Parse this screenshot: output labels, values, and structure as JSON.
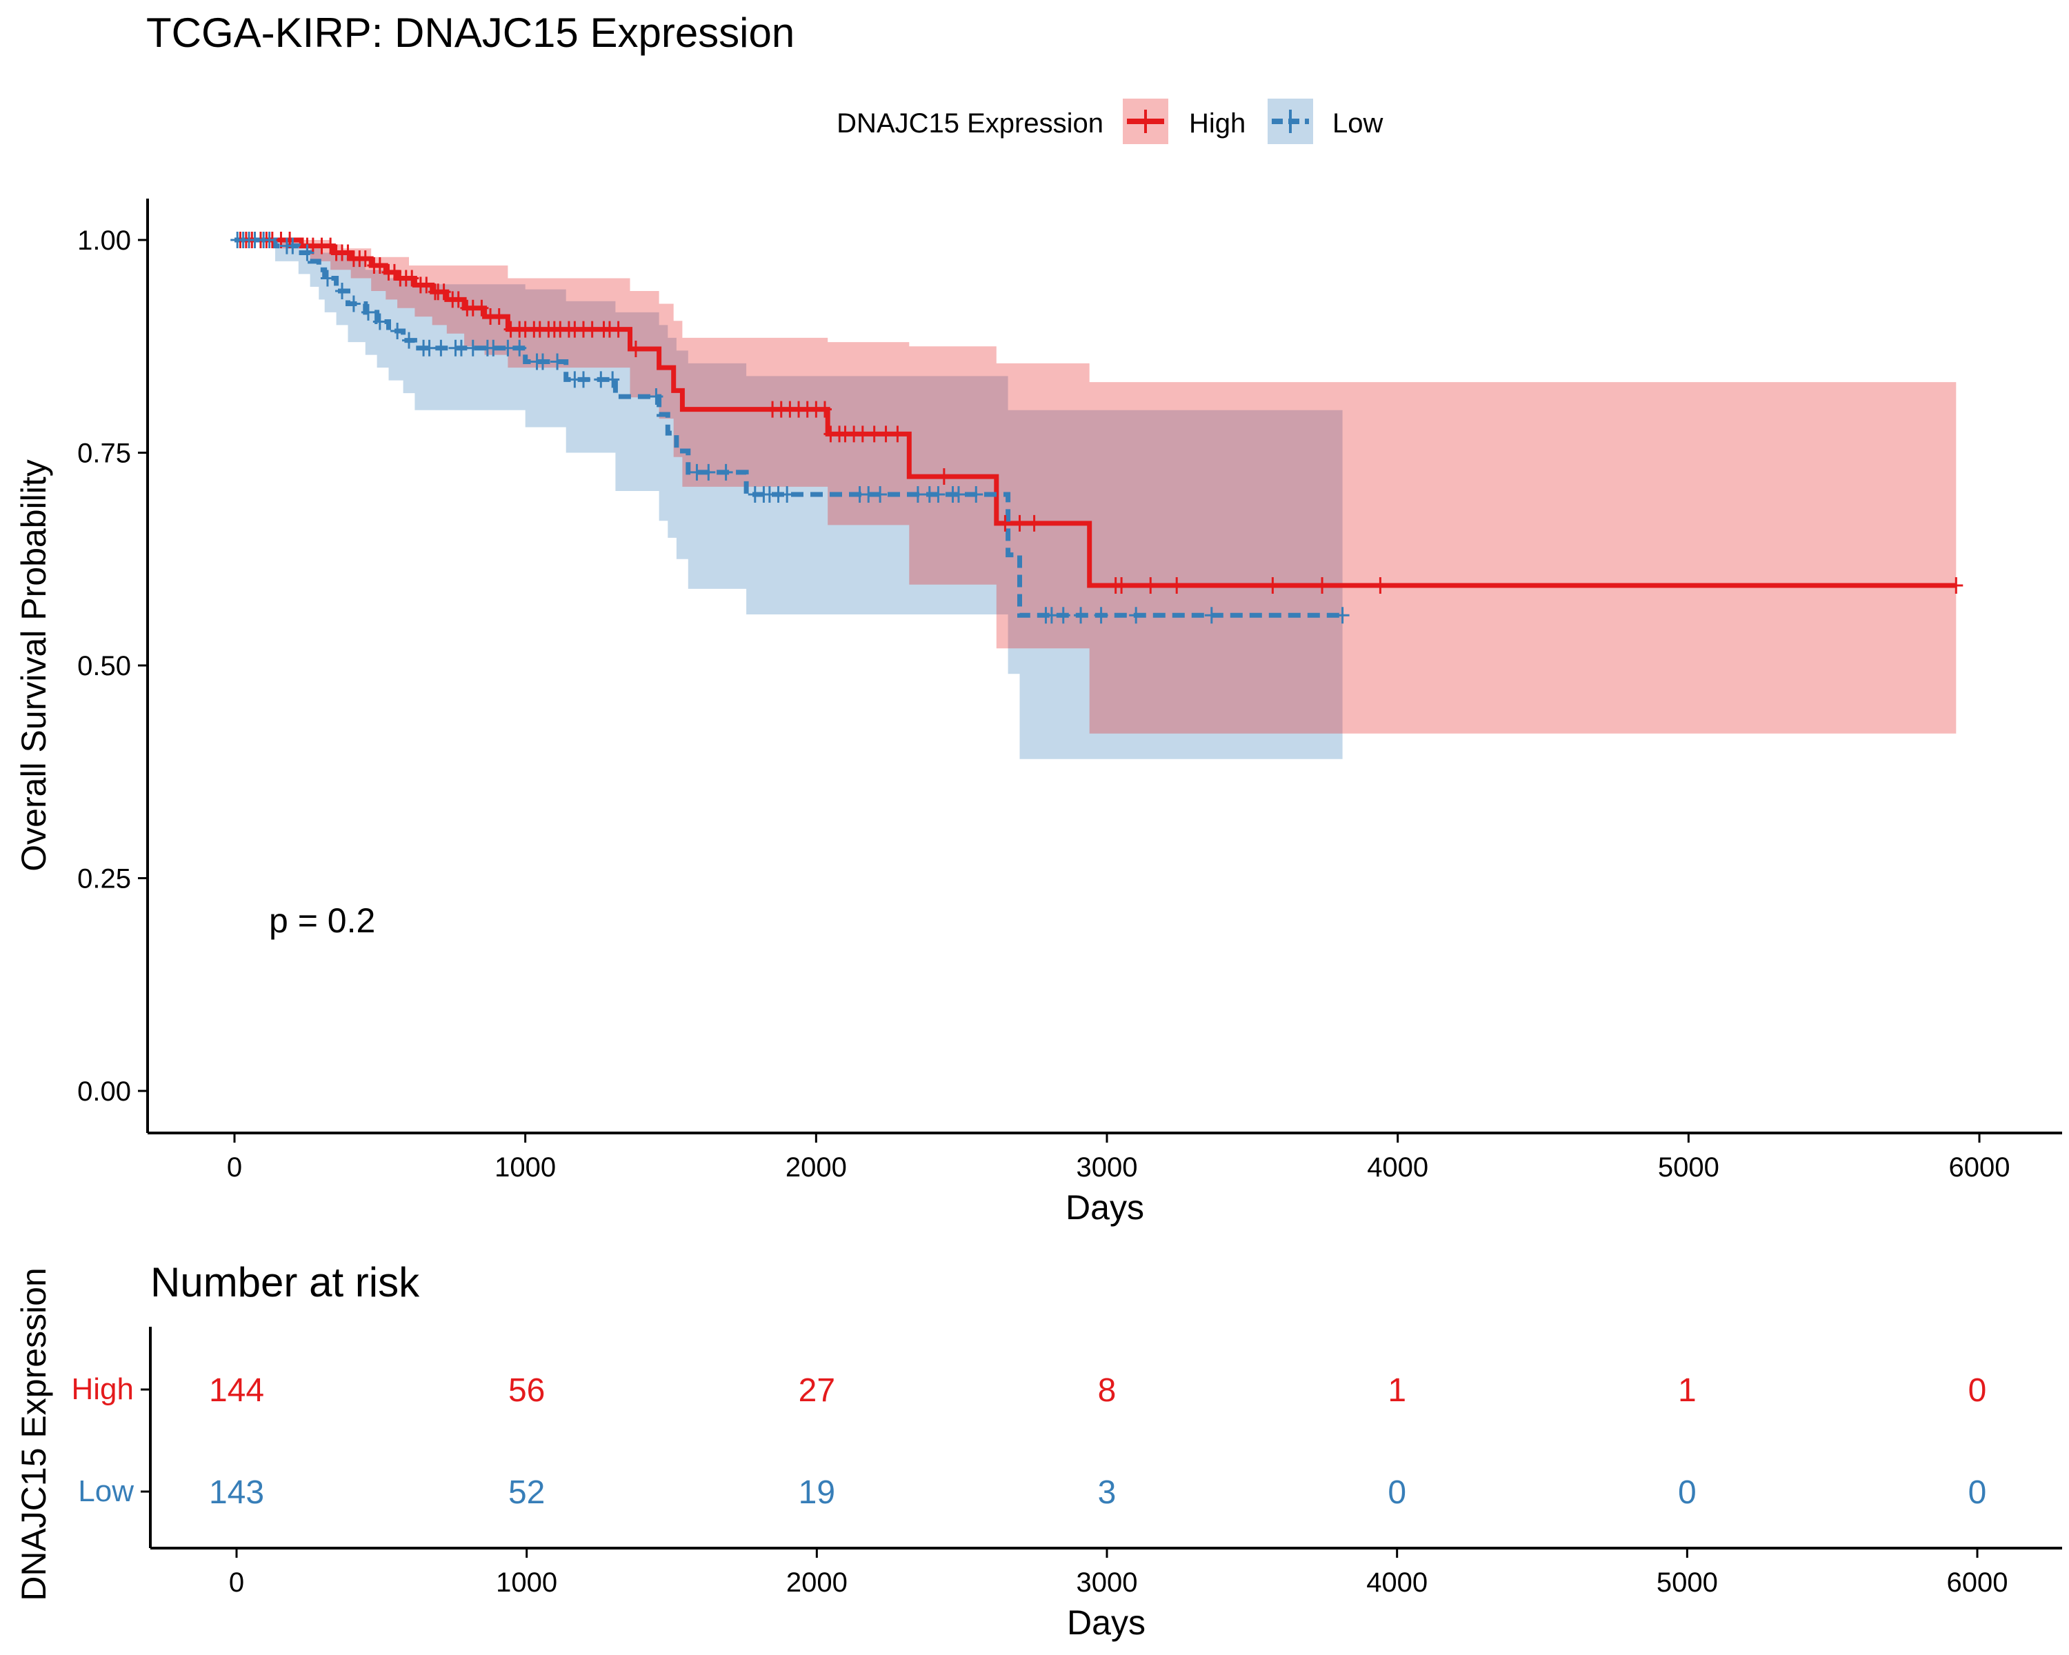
{
  "title": "TCGA-KIRP: DNAJC15 Expression",
  "legend": {
    "title": "DNAJC15 Expression",
    "placement": "top",
    "items": [
      {
        "label": "High",
        "color": "#E41A1C"
      },
      {
        "label": "Low",
        "color": "#377EB8"
      }
    ]
  },
  "pvalue_text": "p = 0.2",
  "risk_table": {
    "title": "Number at risk",
    "ylabel": "DNAJC15 Expression",
    "xlabel": "Days",
    "times": [
      0,
      1000,
      2000,
      3000,
      4000,
      5000,
      6000
    ],
    "tick_labels": [
      "0",
      "1000",
      "2000",
      "3000",
      "4000",
      "5000",
      "6000"
    ],
    "rows": [
      {
        "name": "High",
        "color": "#E41A1C",
        "values": [
          "144",
          "56",
          "27",
          "8",
          "1",
          "1",
          "0"
        ]
      },
      {
        "name": "Low",
        "color": "#377EB8",
        "values": [
          "143",
          "52",
          "19",
          "3",
          "0",
          "0",
          "0"
        ]
      }
    ]
  },
  "chart_data": {
    "type": "line",
    "subtype": "kaplan-meier",
    "title": "TCGA-KIRP: DNAJC15 Expression",
    "xlabel": "Days",
    "ylabel": "Overall Survival Probability",
    "xlim": [
      -300,
      6300
    ],
    "ylim": [
      -0.04,
      1.05
    ],
    "xticks": [
      0,
      1000,
      2000,
      3000,
      4000,
      5000,
      6000
    ],
    "xtick_labels": [
      "0",
      "1000",
      "2000",
      "3000",
      "4000",
      "5000",
      "6000"
    ],
    "yticks": [
      0,
      0.25,
      0.5,
      0.75,
      1.0
    ],
    "ytick_labels": [
      "0.00",
      "0.25",
      "0.50",
      "0.75",
      "1.00"
    ],
    "grid": false,
    "series": [
      {
        "name": "High",
        "color": "#E41A1C",
        "dash": "solid",
        "step": [
          [
            0,
            1.0
          ],
          [
            230,
            0.993
          ],
          [
            340,
            0.985
          ],
          [
            400,
            0.978
          ],
          [
            470,
            0.97
          ],
          [
            520,
            0.962
          ],
          [
            560,
            0.955
          ],
          [
            620,
            0.947
          ],
          [
            680,
            0.939
          ],
          [
            730,
            0.93
          ],
          [
            790,
            0.92
          ],
          [
            860,
            0.91
          ],
          [
            940,
            0.895
          ],
          [
            1360,
            0.872
          ],
          [
            1460,
            0.85
          ],
          [
            1510,
            0.823
          ],
          [
            1540,
            0.801
          ],
          [
            2040,
            0.772
          ],
          [
            2320,
            0.722
          ],
          [
            2620,
            0.667
          ],
          [
            2940,
            0.594
          ],
          [
            5920,
            0.594
          ]
        ],
        "ci_upper": [
          [
            0,
            1.0
          ],
          [
            250,
            1.0
          ],
          [
            330,
            0.995
          ],
          [
            370,
            0.99
          ],
          [
            470,
            0.98
          ],
          [
            600,
            0.97
          ],
          [
            940,
            0.955
          ],
          [
            1360,
            0.94
          ],
          [
            1460,
            0.925
          ],
          [
            1510,
            0.905
          ],
          [
            1540,
            0.885
          ],
          [
            2040,
            0.88
          ],
          [
            2320,
            0.875
          ],
          [
            2620,
            0.855
          ],
          [
            2940,
            0.833
          ],
          [
            5920,
            0.833
          ]
        ],
        "ci_lower": [
          [
            0,
            1.0
          ],
          [
            160,
            0.99
          ],
          [
            260,
            0.975
          ],
          [
            330,
            0.965
          ],
          [
            400,
            0.955
          ],
          [
            470,
            0.94
          ],
          [
            520,
            0.93
          ],
          [
            560,
            0.92
          ],
          [
            620,
            0.91
          ],
          [
            680,
            0.9
          ],
          [
            730,
            0.89
          ],
          [
            790,
            0.875
          ],
          [
            860,
            0.865
          ],
          [
            940,
            0.85
          ],
          [
            1360,
            0.815
          ],
          [
            1460,
            0.79
          ],
          [
            1510,
            0.745
          ],
          [
            1540,
            0.71
          ],
          [
            2040,
            0.665
          ],
          [
            2320,
            0.595
          ],
          [
            2620,
            0.52
          ],
          [
            2940,
            0.42
          ],
          [
            5920,
            0.42
          ]
        ],
        "censor_times": [
          20,
          40,
          60,
          90,
          110,
          130,
          160,
          190,
          250,
          270,
          300,
          330,
          350,
          370,
          390,
          410,
          430,
          450,
          480,
          500,
          530,
          550,
          570,
          590,
          610,
          640,
          660,
          690,
          700,
          720,
          750,
          770,
          800,
          820,
          850,
          880,
          910,
          950,
          980,
          1000,
          1030,
          1050,
          1080,
          1100,
          1120,
          1150,
          1170,
          1200,
          1230,
          1270,
          1290,
          1320,
          1380,
          1850,
          1880,
          1910,
          1940,
          1970,
          2000,
          2030,
          2050,
          2080,
          2100,
          2130,
          2160,
          2200,
          2240,
          2280,
          2440,
          2650,
          2700,
          2750,
          3030,
          3050,
          3150,
          3240,
          3570,
          3740,
          3940,
          5920
        ]
      },
      {
        "name": "Low",
        "color": "#377EB8",
        "dash": "dashed",
        "step": [
          [
            0,
            1.0
          ],
          [
            140,
            0.993
          ],
          [
            220,
            0.985
          ],
          [
            260,
            0.975
          ],
          [
            290,
            0.965
          ],
          [
            310,
            0.955
          ],
          [
            350,
            0.94
          ],
          [
            390,
            0.925
          ],
          [
            450,
            0.915
          ],
          [
            490,
            0.904
          ],
          [
            530,
            0.893
          ],
          [
            580,
            0.882
          ],
          [
            620,
            0.873
          ],
          [
            1000,
            0.857
          ],
          [
            1140,
            0.836
          ],
          [
            1310,
            0.816
          ],
          [
            1460,
            0.795
          ],
          [
            1490,
            0.773
          ],
          [
            1520,
            0.752
          ],
          [
            1560,
            0.727
          ],
          [
            1760,
            0.701
          ],
          [
            2660,
            0.63
          ],
          [
            2700,
            0.559
          ],
          [
            3810,
            0.559
          ]
        ],
        "ci_upper": [
          [
            0,
            1.0
          ],
          [
            140,
            1.0
          ],
          [
            220,
            0.995
          ],
          [
            300,
            0.985
          ],
          [
            390,
            0.975
          ],
          [
            450,
            0.965
          ],
          [
            530,
            0.955
          ],
          [
            620,
            0.948
          ],
          [
            1000,
            0.942
          ],
          [
            1140,
            0.928
          ],
          [
            1310,
            0.915
          ],
          [
            1460,
            0.9
          ],
          [
            1490,
            0.885
          ],
          [
            1520,
            0.87
          ],
          [
            1560,
            0.855
          ],
          [
            1760,
            0.84
          ],
          [
            2660,
            0.8
          ],
          [
            3810,
            0.8
          ]
        ],
        "ci_lower": [
          [
            0,
            1.0
          ],
          [
            140,
            0.975
          ],
          [
            220,
            0.96
          ],
          [
            260,
            0.945
          ],
          [
            290,
            0.93
          ],
          [
            310,
            0.915
          ],
          [
            350,
            0.9
          ],
          [
            390,
            0.88
          ],
          [
            450,
            0.865
          ],
          [
            490,
            0.85
          ],
          [
            530,
            0.835
          ],
          [
            580,
            0.82
          ],
          [
            620,
            0.8
          ],
          [
            1000,
            0.78
          ],
          [
            1140,
            0.75
          ],
          [
            1310,
            0.705
          ],
          [
            1460,
            0.67
          ],
          [
            1490,
            0.65
          ],
          [
            1520,
            0.625
          ],
          [
            1560,
            0.59
          ],
          [
            1760,
            0.56
          ],
          [
            2660,
            0.49
          ],
          [
            2700,
            0.39
          ],
          [
            3810,
            0.39
          ]
        ],
        "censor_times": [
          10,
          30,
          50,
          70,
          100,
          120,
          180,
          200,
          250,
          320,
          370,
          410,
          460,
          500,
          560,
          600,
          650,
          670,
          710,
          760,
          780,
          820,
          870,
          890,
          940,
          980,
          1040,
          1060,
          1110,
          1170,
          1200,
          1260,
          1300,
          1450,
          1590,
          1630,
          1690,
          1790,
          1820,
          1840,
          1870,
          1900,
          2150,
          2180,
          2220,
          2350,
          2390,
          2420,
          2470,
          2490,
          2550,
          2790,
          2810,
          2850,
          2910,
          2980,
          3100,
          3360,
          3810
        ]
      }
    ]
  }
}
